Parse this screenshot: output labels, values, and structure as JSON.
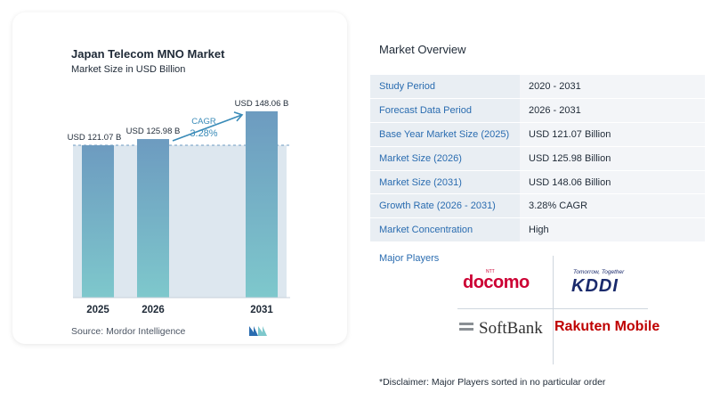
{
  "chart_data": {
    "type": "bar",
    "title": "Japan Telecom MNO Market",
    "subtitle": "Market Size in USD Billion",
    "categories": [
      "2025",
      "2026",
      "2031"
    ],
    "values": [
      121.07,
      125.98,
      148.06
    ],
    "value_labels": [
      "USD 121.07 B",
      "USD 125.98 B",
      "USD 148.06 B"
    ],
    "cagr_label": "CAGR",
    "cagr_value": "3.28%",
    "ylim": [
      0,
      160
    ],
    "colors": {
      "bar_top": "#6d9bc0",
      "bar_bottom": "#7ec8cc",
      "band": "#dde7ef",
      "accent": "#3a8bb8"
    }
  },
  "source": "Source:  Mordor Intelligence",
  "overview": {
    "title": "Market Overview",
    "rows": [
      {
        "label": "Study Period",
        "value": "2020 - 2031"
      },
      {
        "label": "Forecast Data Period",
        "value": "2026 - 2031"
      },
      {
        "label": "Base Year Market Size (2025)",
        "value": "USD 121.07 Billion"
      },
      {
        "label": "Market Size (2026)",
        "value": "USD 125.98 Billion"
      },
      {
        "label": "Market Size (2031)",
        "value": "USD 148.06 Billion"
      },
      {
        "label": "Growth Rate (2026 - 2031)",
        "value": "3.28% CAGR"
      },
      {
        "label": "Market Concentration",
        "value": "High"
      }
    ]
  },
  "players": {
    "title": "Major Players",
    "docomo": "docomo",
    "ntt": "NTT",
    "kddi_tagline": "Tomorrow, Together",
    "kddi": "KDDI",
    "softbank": "SoftBank",
    "rakuten": "Rakuten Mobile"
  },
  "disclaimer": "*Disclaimer: Major Players sorted in no particular order"
}
